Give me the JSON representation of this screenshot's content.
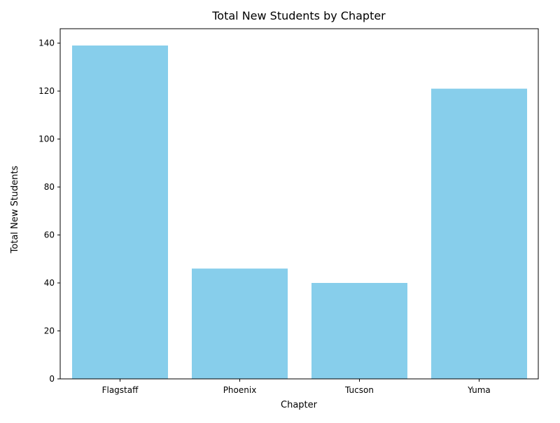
{
  "chart_data": {
    "type": "bar",
    "title": "Total New Students by Chapter",
    "xlabel": "Chapter",
    "ylabel": "Total New Students",
    "categories": [
      "Flagstaff",
      "Phoenix",
      "Tucson",
      "Yuma"
    ],
    "values": [
      139,
      46,
      40,
      121
    ],
    "ylim": [
      0,
      146
    ],
    "yticks": [
      0,
      20,
      40,
      60,
      80,
      100,
      120,
      140
    ],
    "bar_color": "#87CEEB",
    "grid": false,
    "legend": "none"
  }
}
